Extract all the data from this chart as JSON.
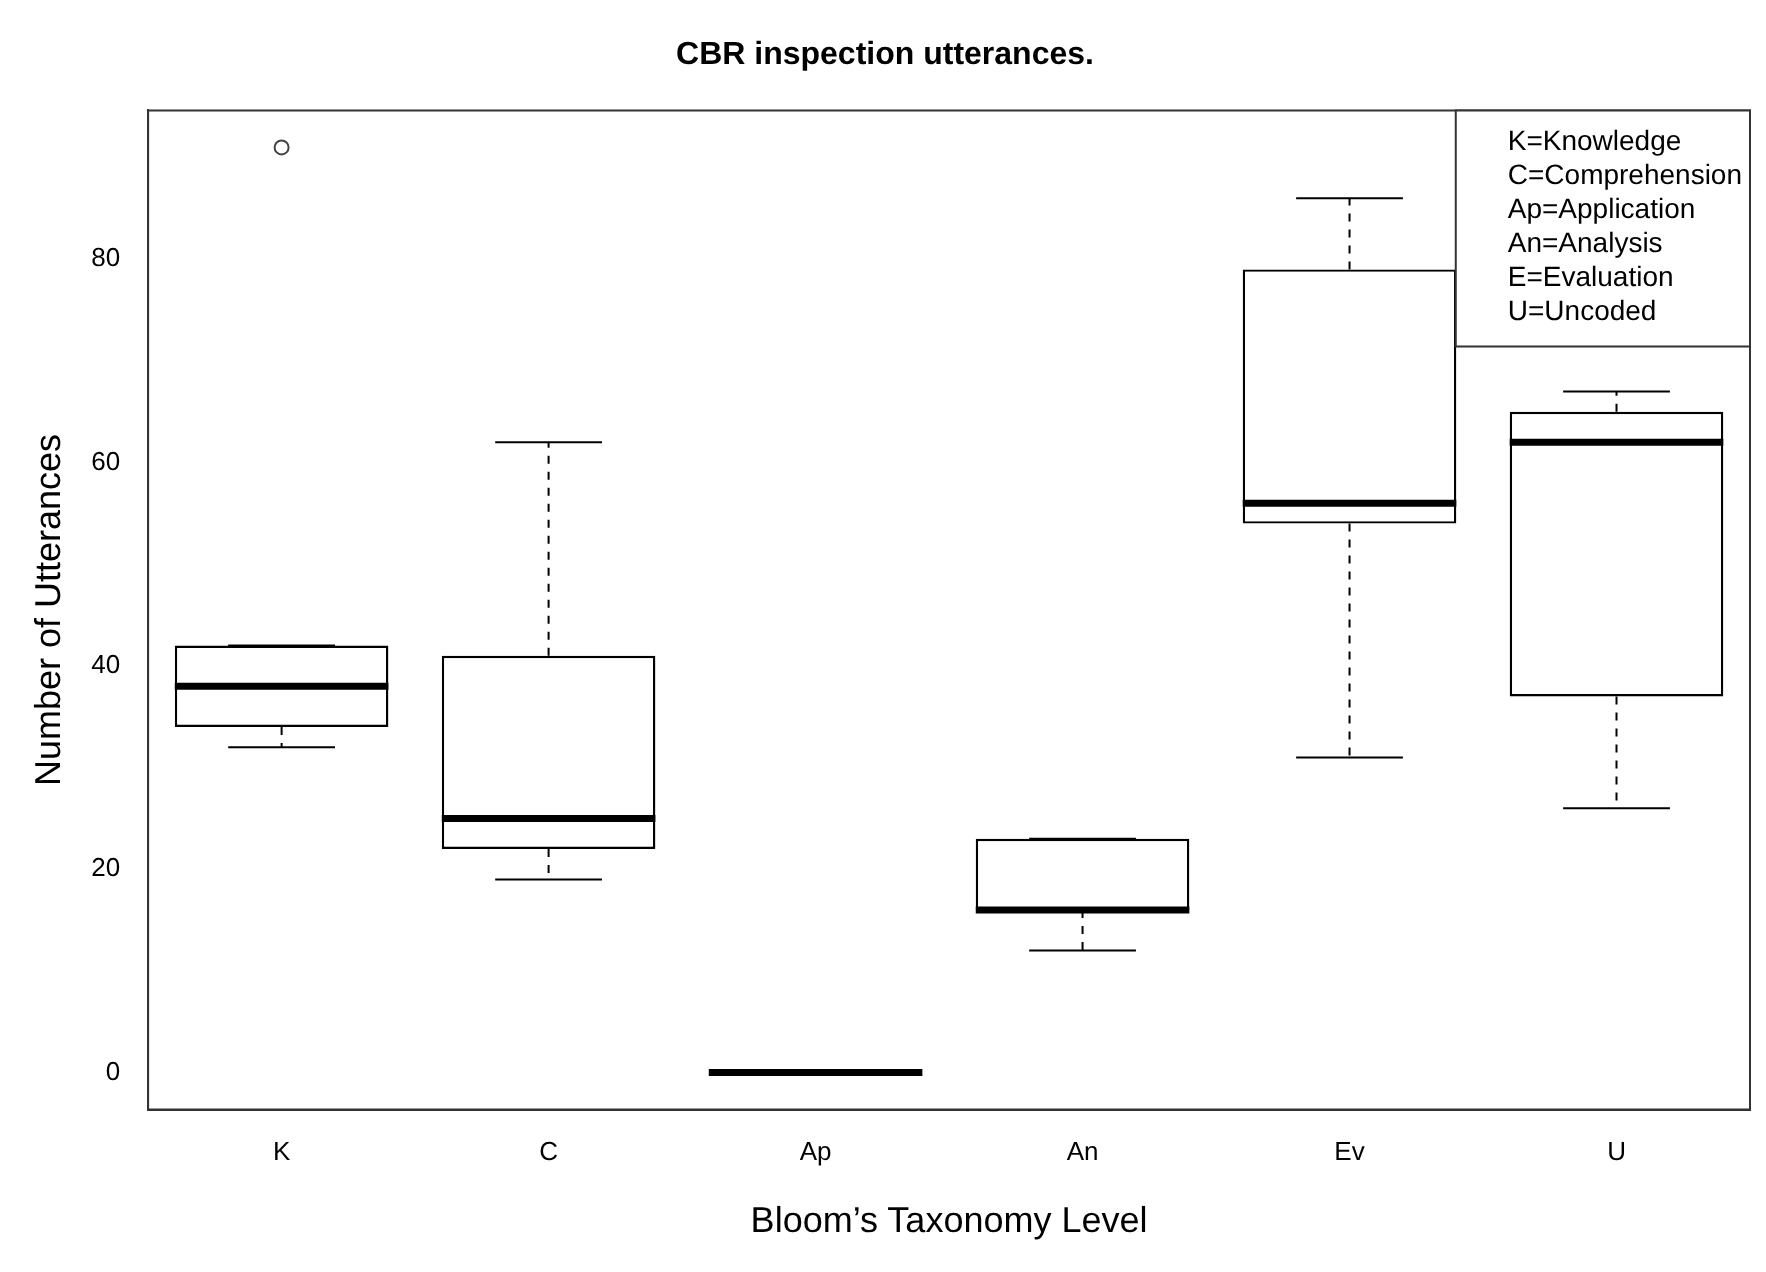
{
  "chart_data": {
    "type": "box",
    "title": "CBR inspection utterances.",
    "xlabel": "Bloom’s Taxonomy Level",
    "ylabel": "Number of Utterances",
    "categories": [
      "K",
      "C",
      "Ap",
      "An",
      "Ev",
      "U"
    ],
    "boxes": [
      {
        "low": 32,
        "q1": 34,
        "median": 38,
        "q3": 42,
        "high": 42,
        "outliers": [
          91
        ]
      },
      {
        "low": 19,
        "q1": 22,
        "median": 25,
        "q3": 41,
        "high": 62
      },
      {
        "low": 0,
        "q1": 0,
        "median": 0,
        "q3": 0,
        "high": 0
      },
      {
        "low": 12,
        "q1": 16,
        "median": 16,
        "q3": 23,
        "high": 23
      },
      {
        "low": 31,
        "q1": 54,
        "median": 56,
        "q3": 79,
        "high": 86
      },
      {
        "low": 26,
        "q1": 37,
        "median": 62,
        "q3": 65,
        "high": 67
      }
    ],
    "ylim": [
      -3.64,
      94.64
    ],
    "yticks": [
      0,
      20,
      40,
      60,
      80
    ],
    "grid": false,
    "legend": false,
    "annotations": [
      "K=Knowledge",
      "C=Comprehension",
      "Ap=Application",
      "An=Analysis",
      "E=Evaluation",
      "U=Uncoded"
    ]
  }
}
